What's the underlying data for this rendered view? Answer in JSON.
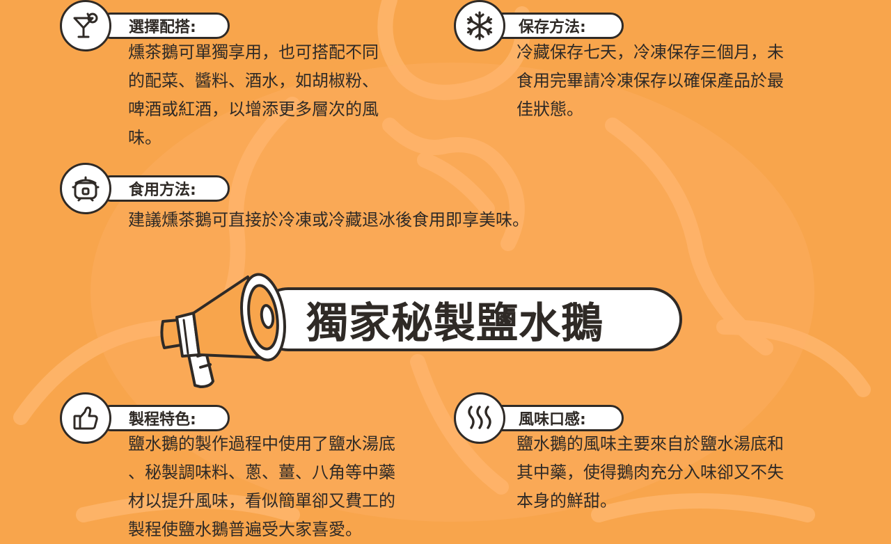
{
  "sections": {
    "pairing": {
      "title": "選擇配搭:",
      "lines": [
        "燻茶鵝可單獨享用，也可搭配不同",
        "的配菜、醬料、酒水，如胡椒粉、",
        "啤酒或紅酒，以增添更多層次的風",
        "味。"
      ]
    },
    "storage": {
      "title": "保存方法:",
      "lines": [
        "冷藏保存七天，冷凍保存三個月，未",
        "食用完畢請冷凍保存以確保產品於最",
        "佳狀態。"
      ]
    },
    "usage": {
      "title": "食用方法:",
      "lines": [
        "建議燻茶鵝可直接於冷凍或冷藏退冰後食用即享美味。"
      ]
    },
    "process": {
      "title": "製程特色:",
      "lines": [
        "鹽水鵝的製作過程中使用了鹽水湯底",
        "、秘製調味料、蔥、薑、八角等中藥",
        "材以提升風味，看似簡單卻又費工的",
        "製程使鹽水鵝普遍受大家喜愛。"
      ]
    },
    "flavor": {
      "title": "風味口感:",
      "lines": [
        "鹽水鵝的風味主要來自於鹽水湯底和",
        "其中藥，使得鵝肉充分入味卻又不失",
        "本身的鮮甜。"
      ]
    }
  },
  "banner": {
    "title": "獨家秘製鹽水鵝"
  },
  "icons": {
    "pairing": "cocktail-icon",
    "storage": "snowflake-icon",
    "usage": "rice-cooker-icon",
    "process": "thumbs-up-icon",
    "flavor": "steam-icon",
    "banner": "megaphone-icon"
  },
  "colors": {
    "background": "#f8a54c",
    "ink": "#2f2a26",
    "accent": "#f8a54c",
    "panel": "#ffffff"
  }
}
